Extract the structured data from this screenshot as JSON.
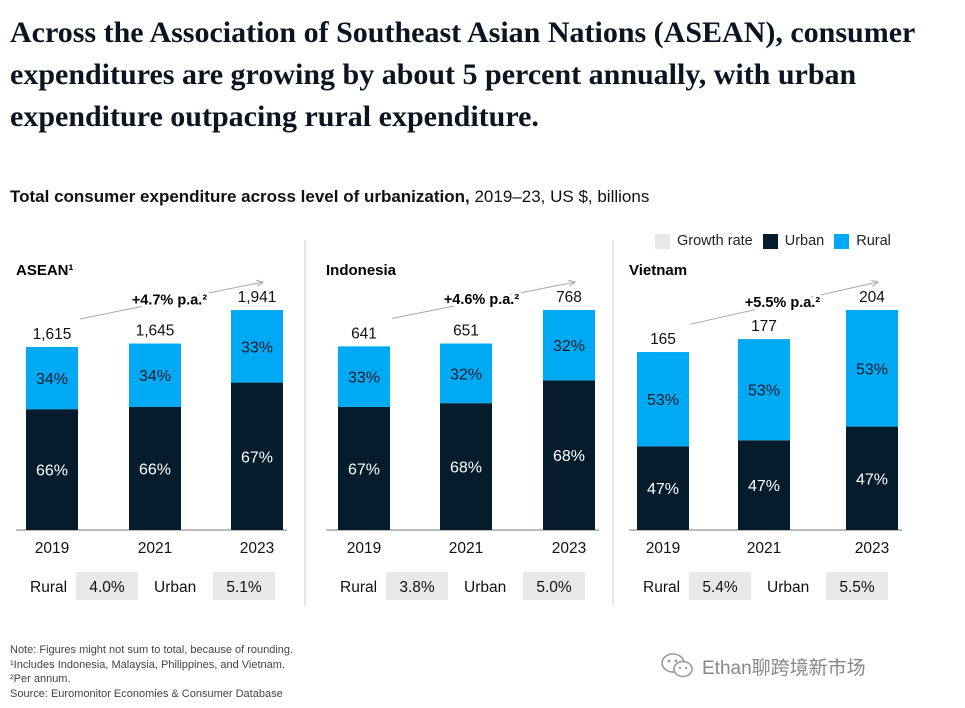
{
  "headline": "Across the Association of Southeast Asian Nations (ASEAN), consumer expenditures are growing by about 5 percent annually, with urban expenditure outpacing rural expenditure.",
  "subtitle_bold": "Total consumer expenditure across level of urbanization,",
  "subtitle_rest": " 2019–23, US $, billions",
  "legend": [
    {
      "label": "Growth rate",
      "color": "#e8e8e8"
    },
    {
      "label": "Urban",
      "color": "#051c2c"
    },
    {
      "label": "Rural",
      "color": "#00a9f4"
    }
  ],
  "chart_data": [
    {
      "type": "bar",
      "title": "ASEAN¹",
      "categories": [
        "2019",
        "2021",
        "2023"
      ],
      "totals": [
        "1,615",
        "1,645",
        "1,941"
      ],
      "total_values": [
        1615,
        1645,
        1941
      ],
      "series": [
        {
          "name": "Urban",
          "values": [
            66,
            66,
            67
          ],
          "labels": [
            "66%",
            "66%",
            "67%"
          ]
        },
        {
          "name": "Rural",
          "values": [
            34,
            34,
            33
          ],
          "labels": [
            "34%",
            "34%",
            "33%"
          ]
        }
      ],
      "growth": "+4.7% p.a.²",
      "growth_rates": [
        {
          "label": "Rural",
          "value": "4.0%"
        },
        {
          "label": "Urban",
          "value": "5.1%"
        }
      ]
    },
    {
      "type": "bar",
      "title": "Indonesia",
      "categories": [
        "2019",
        "2021",
        "2023"
      ],
      "totals": [
        "641",
        "651",
        "768"
      ],
      "total_values": [
        641,
        651,
        768
      ],
      "series": [
        {
          "name": "Urban",
          "values": [
            67,
            68,
            68
          ],
          "labels": [
            "67%",
            "68%",
            "68%"
          ]
        },
        {
          "name": "Rural",
          "values": [
            33,
            32,
            32
          ],
          "labels": [
            "33%",
            "32%",
            "32%"
          ]
        }
      ],
      "growth": "+4.6% p.a.²",
      "growth_rates": [
        {
          "label": "Rural",
          "value": "3.8%"
        },
        {
          "label": "Urban",
          "value": "5.0%"
        }
      ]
    },
    {
      "type": "bar",
      "title": "Vietnam",
      "categories": [
        "2019",
        "2021",
        "2023"
      ],
      "totals": [
        "165",
        "177",
        "204"
      ],
      "total_values": [
        165,
        177,
        204
      ],
      "series": [
        {
          "name": "Urban",
          "values": [
            47,
            47,
            47
          ],
          "labels": [
            "47%",
            "47%",
            "47%"
          ]
        },
        {
          "name": "Rural",
          "values": [
            53,
            53,
            53
          ],
          "labels": [
            "53%",
            "53%",
            "53%"
          ]
        }
      ],
      "growth": "+5.5% p.a.²",
      "growth_rates": [
        {
          "label": "Rural",
          "value": "5.4%"
        },
        {
          "label": "Urban",
          "value": "5.5%"
        }
      ]
    }
  ],
  "notes": [
    "Note: Figures might not sum to total, because of rounding.",
    "¹Includes Indonesia, Malaysia, Philippines, and Vietnam.",
    "²Per annum.",
    "Source: Euromonitor Economies & Consumer Database"
  ],
  "watermark": "Ethan聊跨境新市场"
}
